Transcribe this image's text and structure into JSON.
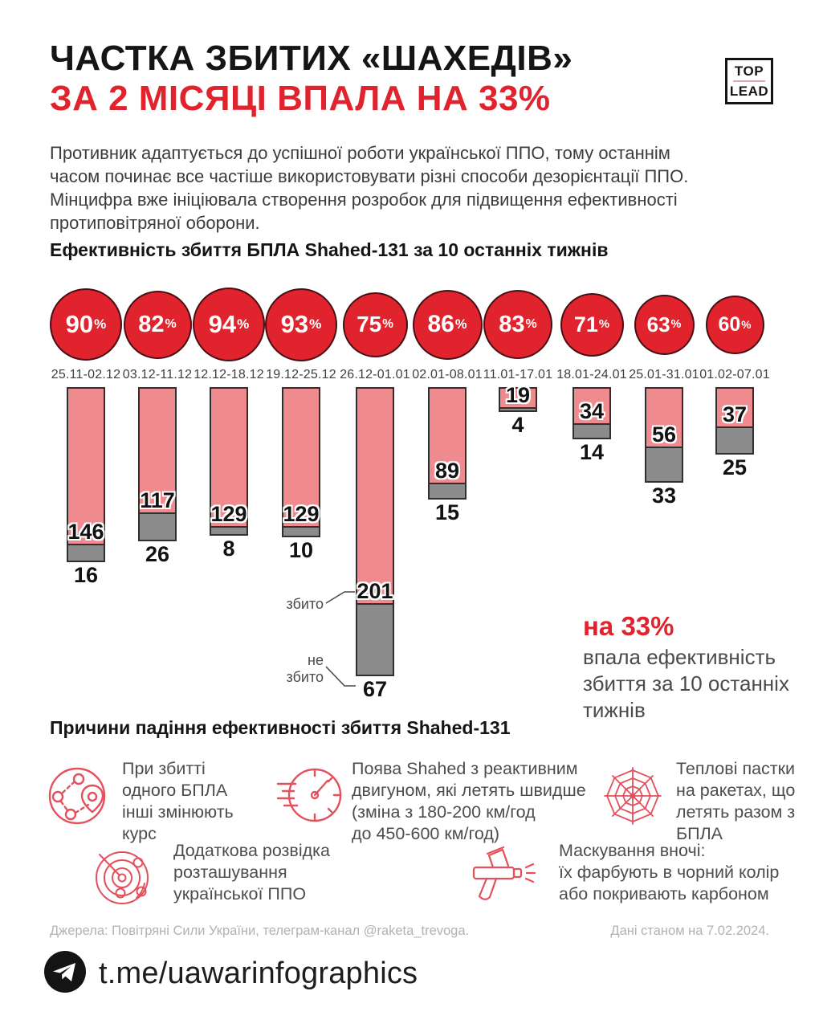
{
  "colors": {
    "accent_red": "#e1232e",
    "bar_pink": "#ef8a8e",
    "bar_gray": "#8c8c8c",
    "icon_red": "#e4505b"
  },
  "header": {
    "title_line1": "ЧАСТКА ЗБИТИХ «ШАХЕДІВ»",
    "title_line2": "ЗА 2 МІСЯЦІ ВПАЛА НА 33%",
    "logo": {
      "top": "TOP",
      "lead": "LEAD"
    },
    "intro_lines": [
      "Противник адаптується до успішної роботи української ППО, тому останнім",
      "часом починає все частіше використовувати різні способи дезорієнтації ППО.",
      "Мінцифра вже ініціювала створення розробок для підвищення ефективності",
      "протиповітряної оборони."
    ]
  },
  "chart": {
    "section_title": "Ефективність збиття БПЛА Shahed-131 за 10 останніх тижнів",
    "annotation_shot": "збито",
    "annotation_not_shot": "не збито",
    "callout": {
      "highlight": "на 33%",
      "rest_lines": [
        "впала ефективність",
        "збиття за 10 останніх",
        "тижнів"
      ]
    }
  },
  "chart_data": {
    "type": "bar",
    "title": "Ефективність збиття БПЛА Shahed-131 за 10 останніх тижнів",
    "series": [
      {
        "name": "збито",
        "color": "#ef8a8e"
      },
      {
        "name": "не збито",
        "color": "#8c8c8c"
      }
    ],
    "weeks": [
      {
        "dates": "25.11-02.12",
        "efficiency_pct": 90,
        "shot_down": 146,
        "not_shot_down": 16
      },
      {
        "dates": "03.12-11.12",
        "efficiency_pct": 82,
        "shot_down": 117,
        "not_shot_down": 26
      },
      {
        "dates": "12.12-18.12",
        "efficiency_pct": 94,
        "shot_down": 129,
        "not_shot_down": 8
      },
      {
        "dates": "19.12-25.12",
        "efficiency_pct": 93,
        "shot_down": 129,
        "not_shot_down": 10
      },
      {
        "dates": "26.12-01.01",
        "efficiency_pct": 75,
        "shot_down": 201,
        "not_shot_down": 67
      },
      {
        "dates": "02.01-08.01",
        "efficiency_pct": 86,
        "shot_down": 89,
        "not_shot_down": 15
      },
      {
        "dates": "11.01-17.01",
        "efficiency_pct": 83,
        "shot_down": 19,
        "not_shot_down": 4
      },
      {
        "dates": "18.01-24.01",
        "efficiency_pct": 71,
        "shot_down": 34,
        "not_shot_down": 14
      },
      {
        "dates": "25.01-31.01",
        "efficiency_pct": 63,
        "shot_down": 56,
        "not_shot_down": 33
      },
      {
        "dates": "01.02-07.01",
        "efficiency_pct": 60,
        "shot_down": 37,
        "not_shot_down": 25
      }
    ]
  },
  "reasons": {
    "section_title": "Причини падіння ефективності збиття Shahed-131",
    "items": [
      {
        "icon": "route-change-icon",
        "lines": [
          "При збитті",
          "одного БПЛА",
          "інші змінюють",
          "курс"
        ]
      },
      {
        "icon": "speedometer-icon",
        "lines": [
          "Поява Shahed з реактивним",
          "двигуном, які летять швидше",
          "(зміна з 180-200 км/год",
          "до 450-600 км/год)"
        ]
      },
      {
        "icon": "flare-web-icon",
        "lines": [
          "Теплові пастки",
          "на ракетах, що",
          "летять разом з",
          "БПЛА"
        ]
      },
      {
        "icon": "radar-icon",
        "lines": [
          "Додаткова розвідка",
          "розташування",
          "української ППО"
        ]
      },
      {
        "icon": "spray-gun-icon",
        "lines": [
          "Маскування вночі:",
          "їх фарбують в чорний колір",
          "або покривають карбоном"
        ]
      }
    ]
  },
  "footer": {
    "sources": "Джерела: Повітряні Сили України, телеграм-канал @raketa_trevoga.",
    "data_as_of": "Дані станом на 7.02.2024.",
    "channel": "t.me/uawarinfographics"
  }
}
